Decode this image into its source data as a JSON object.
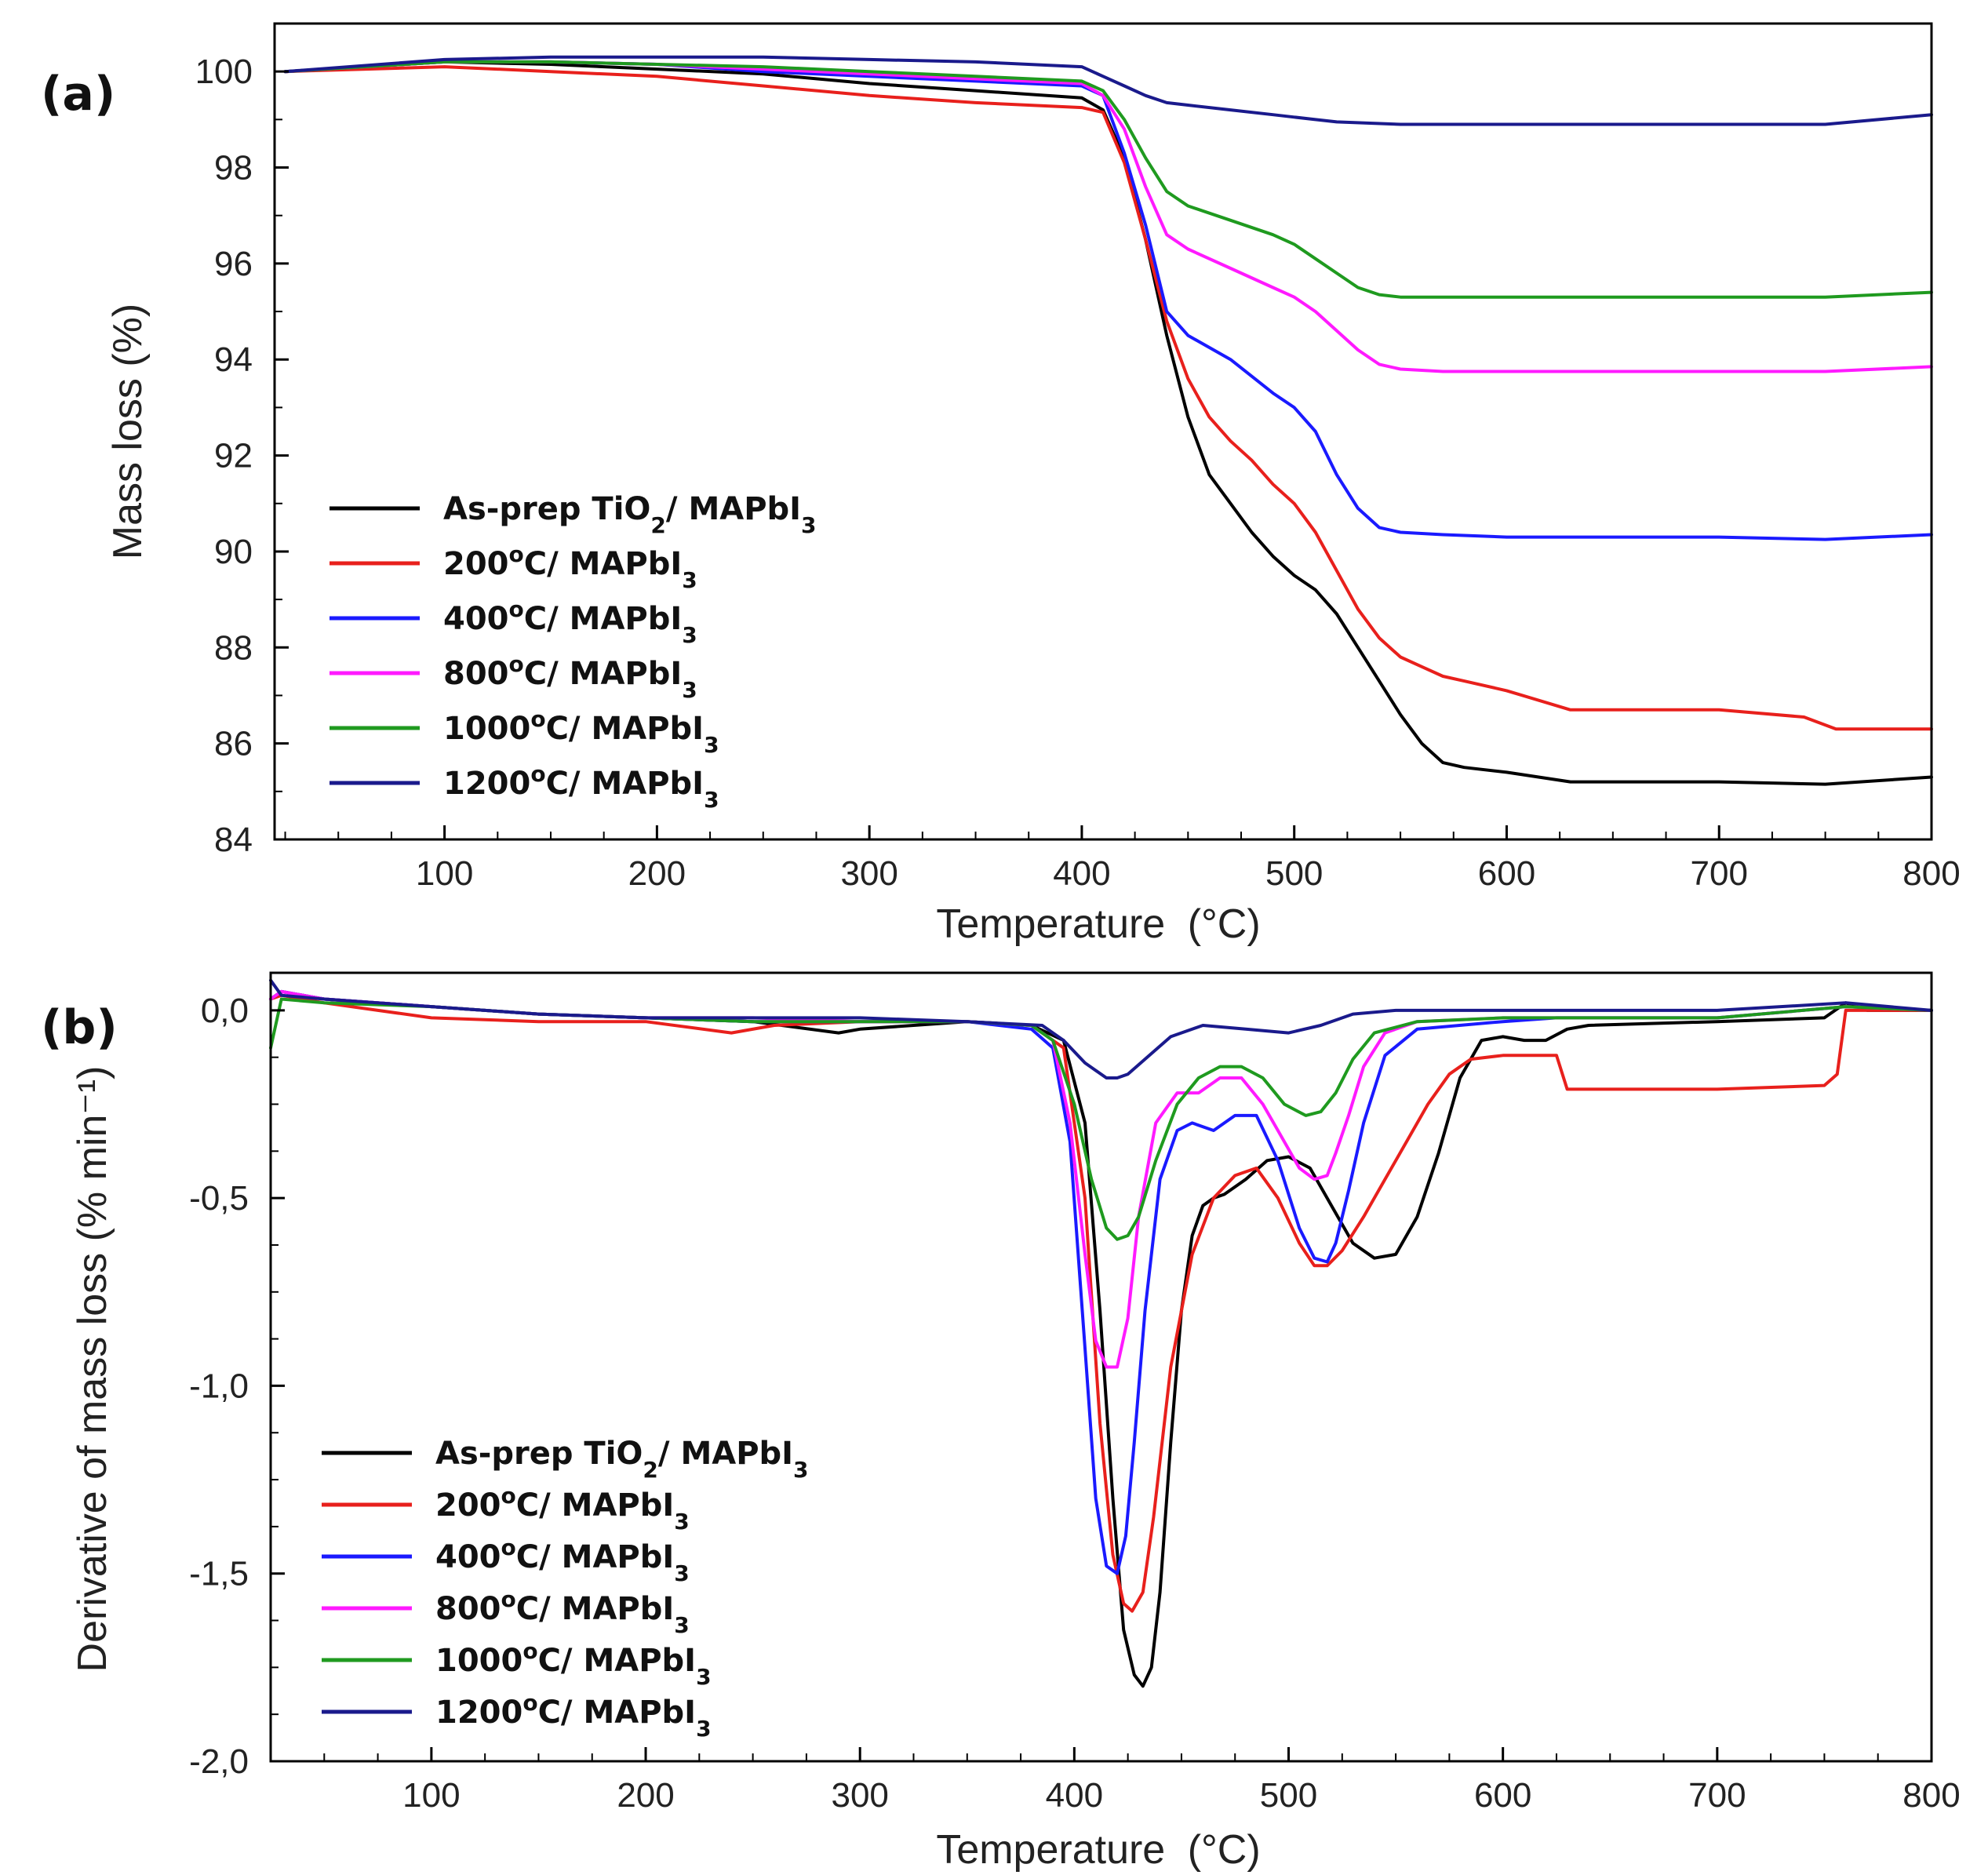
{
  "chart_data": [
    {
      "panel_label": "(a)",
      "type": "line",
      "xlabel": "Temperature",
      "xlabel_unit": "(°C)",
      "ylabel": "Mass loss (%)",
      "xlim": [
        20,
        800
      ],
      "ylim": [
        84,
        101
      ],
      "xticks": [
        {
          "value": 100,
          "label": "100"
        },
        {
          "value": 200,
          "label": "200"
        },
        {
          "value": 300,
          "label": "300"
        },
        {
          "value": 400,
          "label": "400"
        },
        {
          "value": 500,
          "label": "500"
        },
        {
          "value": 600,
          "label": "600"
        },
        {
          "value": 700,
          "label": "700"
        },
        {
          "value": 800,
          "label": "800"
        }
      ],
      "yticks": [
        {
          "value": 84,
          "label": "84"
        },
        {
          "value": 86,
          "label": "86"
        },
        {
          "value": 88,
          "label": "88"
        },
        {
          "value": 90,
          "label": "90"
        },
        {
          "value": 92,
          "label": "92"
        },
        {
          "value": 94,
          "label": "94"
        },
        {
          "value": 96,
          "label": "96"
        },
        {
          "value": 98,
          "label": "98"
        },
        {
          "value": 100,
          "label": "100"
        }
      ],
      "legend_position": "lower-left",
      "series": [
        {
          "name": "As-prep TiO2/ MAPbI3",
          "color": "#000000",
          "x": [
            25,
            100,
            150,
            200,
            250,
            300,
            350,
            400,
            410,
            420,
            430,
            440,
            450,
            460,
            470,
            480,
            490,
            500,
            510,
            520,
            530,
            540,
            550,
            560,
            570,
            580,
            600,
            630,
            700,
            750,
            800
          ],
          "y": [
            100,
            100.2,
            100.15,
            100.05,
            99.95,
            99.75,
            99.6,
            99.45,
            99.2,
            98.2,
            96.5,
            94.5,
            92.8,
            91.6,
            91.0,
            90.4,
            89.9,
            89.5,
            89.2,
            88.7,
            88.0,
            87.3,
            86.6,
            86.0,
            85.6,
            85.5,
            85.4,
            85.2,
            85.2,
            85.15,
            85.3
          ]
        },
        {
          "name": "200°C/ MAPbI3",
          "color": "#e8201c",
          "x": [
            25,
            100,
            150,
            200,
            250,
            300,
            350,
            400,
            410,
            420,
            430,
            440,
            450,
            460,
            470,
            480,
            490,
            500,
            510,
            520,
            530,
            540,
            550,
            560,
            570,
            580,
            600,
            630,
            700,
            740,
            755,
            800
          ],
          "y": [
            100,
            100.1,
            100.0,
            99.9,
            99.7,
            99.5,
            99.35,
            99.25,
            99.15,
            98.1,
            96.5,
            94.8,
            93.6,
            92.8,
            92.3,
            91.9,
            91.4,
            91.0,
            90.4,
            89.6,
            88.8,
            88.2,
            87.8,
            87.6,
            87.4,
            87.3,
            87.1,
            86.7,
            86.7,
            86.55,
            86.3,
            86.3
          ]
        },
        {
          "name": "400°C/ MAPbI3",
          "color": "#1a1aff",
          "x": [
            25,
            100,
            150,
            200,
            250,
            300,
            350,
            400,
            410,
            420,
            430,
            440,
            450,
            470,
            490,
            500,
            510,
            520,
            530,
            540,
            550,
            570,
            600,
            700,
            750,
            800
          ],
          "y": [
            100,
            100.2,
            100.2,
            100.15,
            100.0,
            99.9,
            99.8,
            99.7,
            99.5,
            98.3,
            96.8,
            95.0,
            94.5,
            94.0,
            93.3,
            93.0,
            92.5,
            91.6,
            90.9,
            90.5,
            90.4,
            90.35,
            90.3,
            90.3,
            90.25,
            90.35
          ]
        },
        {
          "name": "800°C/ MAPbI3",
          "color": "#ff1aff",
          "x": [
            25,
            100,
            150,
            200,
            250,
            300,
            350,
            400,
            410,
            420,
            430,
            440,
            450,
            470,
            490,
            500,
            510,
            520,
            530,
            540,
            550,
            570,
            600,
            700,
            750,
            800
          ],
          "y": [
            100,
            100.2,
            100.2,
            100.15,
            100.05,
            99.95,
            99.85,
            99.75,
            99.5,
            98.8,
            97.6,
            96.6,
            96.3,
            95.9,
            95.5,
            95.3,
            95.0,
            94.6,
            94.2,
            93.9,
            93.8,
            93.75,
            93.75,
            93.75,
            93.75,
            93.85
          ]
        },
        {
          "name": "1000°C/ MAPbI3",
          "color": "#1f9a1f",
          "x": [
            25,
            100,
            150,
            200,
            250,
            300,
            350,
            400,
            410,
            420,
            430,
            440,
            450,
            470,
            490,
            500,
            510,
            520,
            530,
            540,
            550,
            570,
            600,
            700,
            750,
            800
          ],
          "y": [
            100,
            100.2,
            100.2,
            100.15,
            100.1,
            100.0,
            99.9,
            99.8,
            99.6,
            99.0,
            98.2,
            97.5,
            97.2,
            96.9,
            96.6,
            96.4,
            96.1,
            95.8,
            95.5,
            95.35,
            95.3,
            95.3,
            95.3,
            95.3,
            95.3,
            95.4
          ]
        },
        {
          "name": "1200°C/ MAPbI3",
          "color": "#1a1a8c",
          "x": [
            25,
            100,
            150,
            200,
            250,
            300,
            350,
            400,
            410,
            420,
            430,
            440,
            450,
            470,
            490,
            500,
            510,
            520,
            550,
            600,
            700,
            750,
            800
          ],
          "y": [
            100,
            100.25,
            100.3,
            100.3,
            100.3,
            100.25,
            100.2,
            100.1,
            99.9,
            99.7,
            99.5,
            99.35,
            99.3,
            99.2,
            99.1,
            99.05,
            99.0,
            98.95,
            98.9,
            98.9,
            98.9,
            98.9,
            99.1
          ]
        }
      ]
    },
    {
      "panel_label": "(b)",
      "type": "line",
      "xlabel": "Temperature",
      "xlabel_unit": "(°C)",
      "ylabel": "Derivative of mass loss (% min⁻¹)",
      "xlim": [
        25,
        800
      ],
      "ylim": [
        -2.0,
        0.1
      ],
      "xticks": [
        {
          "value": 100,
          "label": "100"
        },
        {
          "value": 200,
          "label": "200"
        },
        {
          "value": 300,
          "label": "300"
        },
        {
          "value": 400,
          "label": "400"
        },
        {
          "value": 500,
          "label": "500"
        },
        {
          "value": 600,
          "label": "600"
        },
        {
          "value": 700,
          "label": "700"
        },
        {
          "value": 800,
          "label": "800"
        }
      ],
      "yticks": [
        {
          "value": 0.0,
          "label": "0,0"
        },
        {
          "value": -0.5,
          "label": "-0,5"
        },
        {
          "value": -1.0,
          "label": "-1,0"
        },
        {
          "value": -1.5,
          "label": "-1,5"
        },
        {
          "value": -2.0,
          "label": "-2,0"
        }
      ],
      "legend_position": "lower-left",
      "series": [
        {
          "name": "As-prep TiO2/ MAPbI3",
          "color": "#000000",
          "x": [
            25,
            30,
            50,
            100,
            150,
            200,
            250,
            290,
            300,
            350,
            380,
            395,
            405,
            412,
            418,
            423,
            428,
            432,
            436,
            440,
            445,
            450,
            455,
            460,
            465,
            470,
            480,
            490,
            500,
            510,
            520,
            530,
            540,
            550,
            560,
            570,
            580,
            590,
            600,
            610,
            620,
            630,
            640,
            700,
            750,
            760,
            770,
            800
          ],
          "y": [
            0.03,
            0.05,
            0.03,
            0.01,
            -0.01,
            -0.02,
            -0.03,
            -0.06,
            -0.05,
            -0.03,
            -0.04,
            -0.08,
            -0.3,
            -0.8,
            -1.3,
            -1.65,
            -1.77,
            -1.8,
            -1.75,
            -1.55,
            -1.15,
            -0.8,
            -0.6,
            -0.52,
            -0.5,
            -0.49,
            -0.45,
            -0.4,
            -0.39,
            -0.42,
            -0.52,
            -0.62,
            -0.66,
            -0.65,
            -0.55,
            -0.38,
            -0.18,
            -0.08,
            -0.07,
            -0.08,
            -0.08,
            -0.05,
            -0.04,
            -0.03,
            -0.02,
            0.02,
            0.0,
            0.0
          ]
        },
        {
          "name": "200°C/ MAPbI3",
          "color": "#e8201c",
          "x": [
            25,
            30,
            50,
            100,
            150,
            200,
            240,
            260,
            300,
            350,
            380,
            395,
            405,
            412,
            418,
            423,
            427,
            432,
            437,
            445,
            455,
            465,
            475,
            485,
            495,
            505,
            512,
            518,
            525,
            535,
            545,
            555,
            565,
            575,
            585,
            600,
            625,
            630,
            635,
            700,
            750,
            756,
            760,
            800
          ],
          "y": [
            0.03,
            0.04,
            0.02,
            -0.02,
            -0.03,
            -0.03,
            -0.06,
            -0.04,
            -0.03,
            -0.03,
            -0.04,
            -0.1,
            -0.5,
            -1.1,
            -1.45,
            -1.58,
            -1.6,
            -1.55,
            -1.35,
            -0.95,
            -0.65,
            -0.5,
            -0.44,
            -0.42,
            -0.5,
            -0.62,
            -0.68,
            -0.68,
            -0.64,
            -0.55,
            -0.45,
            -0.35,
            -0.25,
            -0.17,
            -0.13,
            -0.12,
            -0.12,
            -0.21,
            -0.21,
            -0.21,
            -0.2,
            -0.17,
            0.0,
            0.0
          ]
        },
        {
          "name": "400°C/ MAPbI3",
          "color": "#1a1aff",
          "x": [
            25,
            30,
            50,
            100,
            150,
            200,
            250,
            300,
            350,
            380,
            390,
            398,
            405,
            410,
            415,
            420,
            424,
            428,
            433,
            440,
            448,
            455,
            465,
            475,
            485,
            495,
            505,
            512,
            518,
            522,
            528,
            535,
            545,
            560,
            600,
            625,
            700,
            760,
            800
          ],
          "y": [
            0.03,
            0.05,
            0.03,
            0.01,
            -0.01,
            -0.02,
            -0.03,
            -0.03,
            -0.03,
            -0.05,
            -0.1,
            -0.35,
            -0.9,
            -1.3,
            -1.48,
            -1.5,
            -1.4,
            -1.15,
            -0.8,
            -0.45,
            -0.32,
            -0.3,
            -0.32,
            -0.28,
            -0.28,
            -0.4,
            -0.58,
            -0.66,
            -0.67,
            -0.62,
            -0.48,
            -0.3,
            -0.12,
            -0.05,
            -0.03,
            -0.02,
            -0.02,
            0.01,
            0.0
          ]
        },
        {
          "name": "800°C/ MAPbI3",
          "color": "#ff1aff",
          "x": [
            25,
            30,
            50,
            100,
            150,
            200,
            250,
            300,
            350,
            380,
            390,
            398,
            405,
            410,
            415,
            420,
            425,
            430,
            438,
            448,
            458,
            468,
            478,
            488,
            495,
            505,
            512,
            518,
            522,
            528,
            535,
            545,
            560,
            600,
            700,
            760,
            800
          ],
          "y": [
            0.03,
            0.05,
            0.03,
            0.01,
            -0.01,
            -0.02,
            -0.02,
            -0.03,
            -0.03,
            -0.04,
            -0.08,
            -0.3,
            -0.65,
            -0.88,
            -0.95,
            -0.95,
            -0.82,
            -0.55,
            -0.3,
            -0.22,
            -0.22,
            -0.18,
            -0.18,
            -0.25,
            -0.32,
            -0.42,
            -0.45,
            -0.44,
            -0.38,
            -0.28,
            -0.15,
            -0.06,
            -0.03,
            -0.02,
            -0.02,
            0.01,
            0.0
          ]
        },
        {
          "name": "1000°C/ MAPbI3",
          "color": "#1f9a1f",
          "x": [
            25,
            30,
            50,
            100,
            150,
            200,
            250,
            300,
            350,
            380,
            390,
            400,
            408,
            415,
            420,
            425,
            430,
            438,
            448,
            458,
            468,
            478,
            488,
            498,
            508,
            515,
            522,
            530,
            540,
            560,
            600,
            700,
            760,
            800
          ],
          "y": [
            -0.1,
            0.03,
            0.02,
            0.01,
            -0.01,
            -0.02,
            -0.03,
            -0.03,
            -0.03,
            -0.04,
            -0.08,
            -0.25,
            -0.45,
            -0.58,
            -0.61,
            -0.6,
            -0.55,
            -0.4,
            -0.25,
            -0.18,
            -0.15,
            -0.15,
            -0.18,
            -0.25,
            -0.28,
            -0.27,
            -0.22,
            -0.13,
            -0.06,
            -0.03,
            -0.02,
            -0.02,
            0.01,
            0.0
          ]
        },
        {
          "name": "1200°C/ MAPbI3",
          "color": "#1a1a8c",
          "x": [
            25,
            30,
            50,
            100,
            150,
            200,
            250,
            300,
            350,
            385,
            395,
            405,
            415,
            420,
            425,
            435,
            445,
            460,
            480,
            500,
            515,
            530,
            550,
            600,
            700,
            760,
            800
          ],
          "y": [
            0.08,
            0.04,
            0.03,
            0.01,
            -0.01,
            -0.02,
            -0.02,
            -0.02,
            -0.03,
            -0.04,
            -0.08,
            -0.14,
            -0.18,
            -0.18,
            -0.17,
            -0.12,
            -0.07,
            -0.04,
            -0.05,
            -0.06,
            -0.04,
            -0.01,
            0.0,
            0.0,
            0.0,
            0.02,
            0.0
          ]
        }
      ]
    }
  ]
}
